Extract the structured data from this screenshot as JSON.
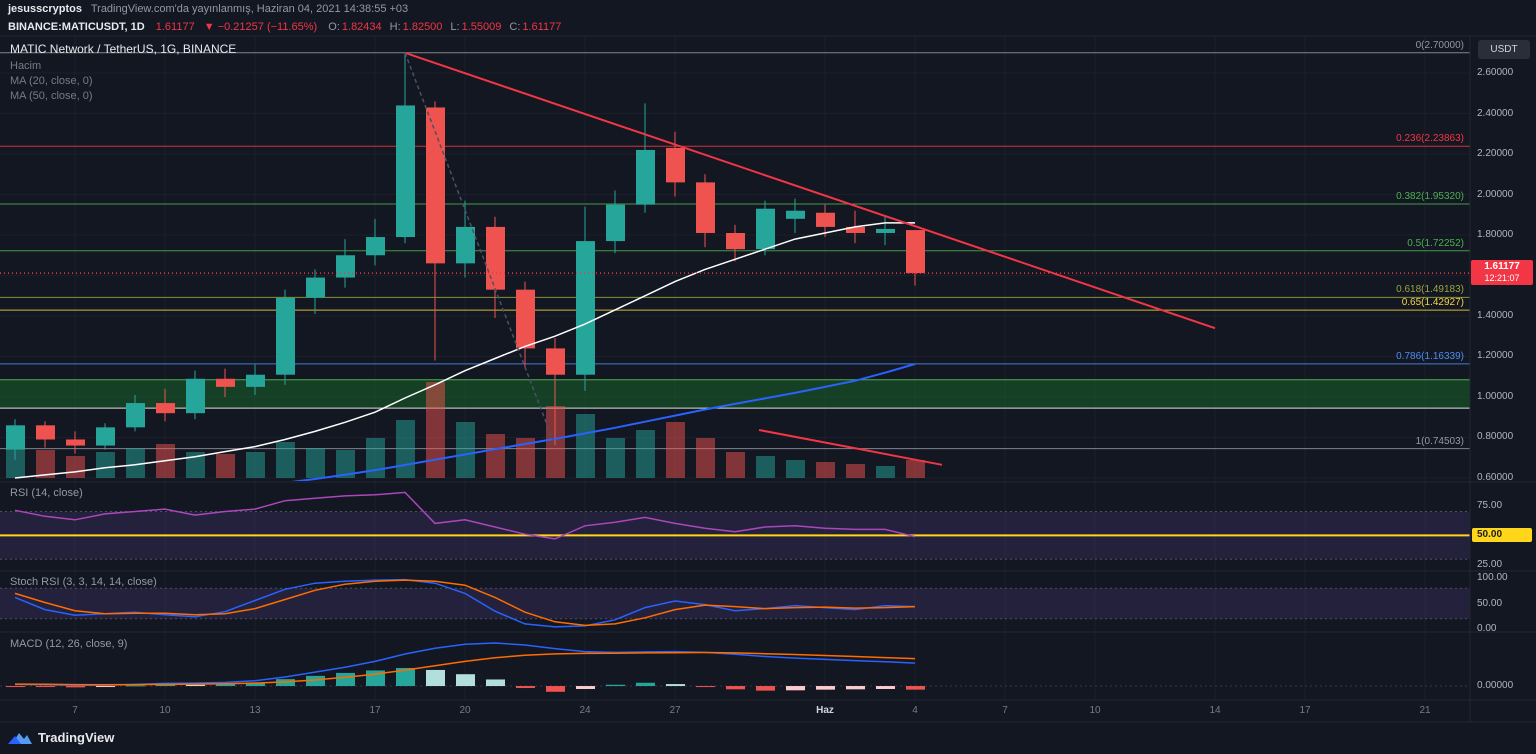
{
  "topbar": {
    "author": "jesusscryptos",
    "published": "TradingView.com'da yayınlanmış, Haziran 04, 2021 14:38:55 +03"
  },
  "symbol_bar": {
    "symbol": "BINANCE:MATICUSDT, 1D",
    "price": "1.61177",
    "change": "▼ −0.21257 (−11.65%)",
    "ohlc": [
      {
        "label": "O:",
        "value": "1.82434"
      },
      {
        "label": "H:",
        "value": "1.82500"
      },
      {
        "label": "L:",
        "value": "1.55009"
      },
      {
        "label": "C:",
        "value": "1.61177"
      }
    ]
  },
  "legend": {
    "title": "MATIC Network / TetherUS, 1G, BINANCE",
    "volume": "Hacim",
    "ma20": "MA (20, close, 0)",
    "ma50": "MA (50, close, 0)",
    "rsi": "RSI (14, close)",
    "stoch": "Stoch RSI (3, 3, 14, 14, close)",
    "macd": "MACD (12, 26, close, 9)"
  },
  "price_scale": {
    "currency": "USDT",
    "main_labels": [
      {
        "text": "2.60000",
        "value": 2.6
      },
      {
        "text": "2.40000",
        "value": 2.4
      },
      {
        "text": "2.20000",
        "value": 2.2
      },
      {
        "text": "2.00000",
        "value": 2.0
      },
      {
        "text": "1.80000",
        "value": 1.8
      },
      {
        "text": "1.60000",
        "value": 1.6
      },
      {
        "text": "1.40000",
        "value": 1.4
      },
      {
        "text": "1.20000",
        "value": 1.2
      },
      {
        "text": "1.00000",
        "value": 1.0
      },
      {
        "text": "0.80000",
        "value": 0.8
      },
      {
        "text": "0.60000",
        "value": 0.6
      }
    ],
    "price_badge": {
      "price": "1.61177",
      "countdown": "12:21:07",
      "color": "#f23645"
    }
  },
  "time_axis": {
    "labels": [
      {
        "label": "7",
        "i": 2
      },
      {
        "label": "10",
        "i": 5
      },
      {
        "label": "13",
        "i": 8
      },
      {
        "label": "17",
        "i": 12
      },
      {
        "label": "20",
        "i": 15
      },
      {
        "label": "24",
        "i": 19
      },
      {
        "label": "27",
        "i": 22
      },
      {
        "label": "Haz",
        "i": 27,
        "major": true
      },
      {
        "label": "4",
        "i": 30
      },
      {
        "label": "7",
        "i": 33
      },
      {
        "label": "10",
        "i": 36
      },
      {
        "label": "14",
        "i": 40
      },
      {
        "label": "17",
        "i": 43
      },
      {
        "label": "21",
        "i": 47
      }
    ]
  },
  "branding": {
    "name": "TradingView"
  },
  "chart_data": [
    {
      "type": "candlestick",
      "title": "MATIC Network / TetherUS, 1G, BINANCE",
      "interval": "1D",
      "up_color": "#26a69a",
      "down_color": "#ef5350",
      "ylim": [
        0.585,
        2.783
      ],
      "dates": [
        "2021-05-05",
        "2021-05-06",
        "2021-05-07",
        "2021-05-08",
        "2021-05-09",
        "2021-05-10",
        "2021-05-11",
        "2021-05-12",
        "2021-05-13",
        "2021-05-14",
        "2021-05-15",
        "2021-05-16",
        "2021-05-17",
        "2021-05-18",
        "2021-05-19",
        "2021-05-20",
        "2021-05-21",
        "2021-05-22",
        "2021-05-23",
        "2021-05-24",
        "2021-05-25",
        "2021-05-26",
        "2021-05-27",
        "2021-05-28",
        "2021-05-29",
        "2021-05-30",
        "2021-05-31",
        "2021-06-01",
        "2021-06-02",
        "2021-06-03",
        "2021-06-04"
      ],
      "open": [
        0.74,
        0.86,
        0.79,
        0.76,
        0.85,
        0.97,
        0.92,
        1.09,
        1.05,
        1.11,
        1.49,
        1.59,
        1.7,
        1.79,
        2.43,
        1.66,
        1.84,
        1.53,
        1.24,
        1.11,
        1.77,
        1.95,
        2.23,
        2.06,
        1.81,
        1.73,
        1.88,
        1.91,
        1.84,
        1.81,
        1.82434
      ],
      "high": [
        0.89,
        0.88,
        0.83,
        0.87,
        1.01,
        1.04,
        1.13,
        1.14,
        1.16,
        1.53,
        1.63,
        1.78,
        1.88,
        2.7,
        2.46,
        1.97,
        1.89,
        1.57,
        1.29,
        1.94,
        2.02,
        2.45,
        2.31,
        2.1,
        1.85,
        1.97,
        1.98,
        1.95,
        1.92,
        1.89,
        1.825
      ],
      "low": [
        0.69,
        0.75,
        0.72,
        0.74,
        0.83,
        0.88,
        0.89,
        1.0,
        1.01,
        1.06,
        1.41,
        1.54,
        1.65,
        1.76,
        1.18,
        1.59,
        1.39,
        1.14,
        0.76,
        1.03,
        1.71,
        1.91,
        1.99,
        1.74,
        1.67,
        1.7,
        1.81,
        1.79,
        1.76,
        1.75,
        1.55009
      ],
      "close": [
        0.86,
        0.79,
        0.76,
        0.85,
        0.97,
        0.92,
        1.09,
        1.05,
        1.11,
        1.49,
        1.59,
        1.7,
        1.79,
        2.44,
        1.66,
        1.84,
        1.53,
        1.24,
        1.11,
        1.77,
        1.95,
        2.22,
        2.06,
        1.81,
        1.73,
        1.93,
        1.92,
        1.84,
        1.81,
        1.83,
        1.61177
      ],
      "volume": [
        1.25,
        0.7,
        0.55,
        0.65,
        0.75,
        0.85,
        0.65,
        0.6,
        0.65,
        0.9,
        0.75,
        0.7,
        1.0,
        1.45,
        2.4,
        1.4,
        1.1,
        1.0,
        1.8,
        1.6,
        1.0,
        1.2,
        1.4,
        1.0,
        0.65,
        0.55,
        0.45,
        0.4,
        0.35,
        0.3,
        0.45
      ],
      "overlays": {
        "ma20": {
          "name": "MA (20, close, 0)",
          "color": "#ffffff",
          "values": [
            0.6,
            0.615,
            0.63,
            0.65,
            0.665,
            0.685,
            0.705,
            0.73,
            0.755,
            0.79,
            0.83,
            0.875,
            0.925,
            0.995,
            1.06,
            1.13,
            1.19,
            1.25,
            1.3,
            1.36,
            1.43,
            1.5,
            1.57,
            1.63,
            1.68,
            1.73,
            1.78,
            1.81,
            1.84,
            1.86,
            1.86
          ]
        },
        "ma50": {
          "name": "MA (50, close, 0)",
          "color": "#2962ff",
          "values": [
            0.455,
            0.465,
            0.475,
            0.487,
            0.5,
            0.513,
            0.527,
            0.542,
            0.558,
            0.576,
            0.595,
            0.616,
            0.639,
            0.664,
            0.69,
            0.716,
            0.742,
            0.768,
            0.793,
            0.82,
            0.848,
            0.878,
            0.908,
            0.938,
            0.966,
            0.993,
            1.02,
            1.05,
            1.08,
            1.12,
            1.163
          ]
        }
      },
      "fib_levels": [
        {
          "label": "0(2.70000)",
          "value": 2.7,
          "color": "#9598a1"
        },
        {
          "label": "0.236(2.23863)",
          "value": 2.23863,
          "color": "#f23645"
        },
        {
          "label": "0.382(1.95320)",
          "value": 1.9532,
          "color": "#4caf50"
        },
        {
          "label": "0.5(1.72252)",
          "value": 1.72252,
          "color": "#4caf50"
        },
        {
          "label": "0.618(1.49183)",
          "value": 1.49183,
          "color": "#9ba340"
        },
        {
          "label": "0.65(1.42927)",
          "value": 1.42927,
          "color": "#f2d43f"
        },
        {
          "label": "0.786(1.16339)",
          "value": 1.16339,
          "color": "#4c8df0"
        },
        {
          "label": "1(0.74503)",
          "value": 0.74503,
          "color": "#9598a1"
        }
      ],
      "support_zone": {
        "top": 1.085,
        "bottom": 0.945,
        "fill": "rgba(27,115,43,0.45)",
        "top_border": "#4caf50",
        "bottom_border": "#dededf"
      },
      "trendlines": [
        {
          "from": {
            "i": 13,
            "price": 2.7
          },
          "to": {
            "i": 40,
            "price": 1.34
          },
          "color": "#f23645",
          "width": 2,
          "dash": ""
        },
        {
          "from": {
            "i": 13,
            "price": 2.7
          },
          "to": {
            "i": 18,
            "price": 0.76
          },
          "color": "#4b5162",
          "width": 1.5,
          "dash": "4,3"
        }
      ],
      "volume_trendline": {
        "from": {
          "i": 24.8,
          "vol": 1.2
        },
        "to": {
          "i": 30.9,
          "vol": 0.33
        },
        "color": "#f23645",
        "width": 2
      },
      "price_line": {
        "value": 1.61177,
        "color": "#f23645"
      }
    },
    {
      "type": "line",
      "title": "RSI (14, close)",
      "color": "#ab47bc",
      "ylim": [
        21,
        93
      ],
      "values": [
        71,
        66,
        63,
        68,
        70,
        72,
        67,
        70,
        72,
        79,
        81,
        83,
        84,
        86,
        60,
        63,
        57,
        51,
        47,
        58,
        61,
        65,
        60,
        56,
        53,
        57,
        58,
        56,
        55,
        55,
        49
      ],
      "bands": {
        "upper": 70,
        "lower": 30,
        "fill": "rgba(126,87,194,0.16)"
      },
      "hline": {
        "value": 50,
        "color": "#ffd619",
        "label": "50.00"
      },
      "scale_labels": [
        {
          "text": "75.00",
          "value": 75
        },
        {
          "text": "50.00",
          "value": 50,
          "badge": true
        },
        {
          "text": "25.00",
          "value": 25
        }
      ]
    },
    {
      "type": "line",
      "title": "Stoch RSI (3, 3, 14, 14, close)",
      "ylim": [
        -4,
        112
      ],
      "series": [
        {
          "name": "%K",
          "color": "#2962ff",
          "values": [
            62,
            38,
            27,
            30,
            33,
            28,
            24,
            34,
            56,
            78,
            90,
            94,
            96,
            97,
            90,
            70,
            35,
            10,
            4,
            6,
            18,
            42,
            55,
            48,
            36,
            40,
            46,
            42,
            38,
            46,
            44
          ]
        },
        {
          "name": "%D",
          "color": "#ff6d00",
          "values": [
            70,
            52,
            36,
            30,
            31,
            31,
            28,
            30,
            40,
            58,
            76,
            88,
            94,
            96,
            94,
            86,
            62,
            33,
            14,
            7,
            10,
            22,
            38,
            47,
            44,
            40,
            42,
            43,
            41,
            42,
            44
          ]
        }
      ],
      "bands": {
        "upper": 80,
        "lower": 20,
        "fill": "rgba(126,87,194,0.16)"
      },
      "scale_labels": [
        {
          "text": "100.00",
          "value": 100
        },
        {
          "text": "50.00",
          "value": 50
        },
        {
          "text": "0.00",
          "value": 0
        }
      ]
    },
    {
      "type": "macd",
      "title": "MACD (12, 26, close, 9)",
      "ylim": [
        -0.085,
        0.323
      ],
      "macd": {
        "color": "#2962ff",
        "values": [
          0.01,
          0.008,
          0.005,
          0.006,
          0.01,
          0.016,
          0.018,
          0.022,
          0.032,
          0.055,
          0.085,
          0.115,
          0.15,
          0.195,
          0.23,
          0.255,
          0.262,
          0.25,
          0.228,
          0.21,
          0.205,
          0.208,
          0.21,
          0.205,
          0.193,
          0.18,
          0.17,
          0.162,
          0.155,
          0.148,
          0.14
        ]
      },
      "signal": {
        "color": "#ff6d00",
        "values": [
          0.012,
          0.011,
          0.009,
          0.008,
          0.009,
          0.01,
          0.012,
          0.014,
          0.018,
          0.025,
          0.037,
          0.053,
          0.072,
          0.097,
          0.124,
          0.15,
          0.172,
          0.188,
          0.196,
          0.199,
          0.2,
          0.202,
          0.203,
          0.204,
          0.202,
          0.197,
          0.192,
          0.186,
          0.18,
          0.173,
          0.167
        ]
      },
      "histogram": {
        "values": [
          -0.004,
          -0.006,
          -0.008,
          -0.004,
          0.004,
          0.01,
          0.008,
          0.012,
          0.022,
          0.042,
          0.062,
          0.08,
          0.095,
          0.11,
          0.098,
          0.072,
          0.04,
          -0.012,
          -0.035,
          -0.018,
          0.008,
          0.02,
          0.012,
          -0.006,
          -0.02,
          -0.028,
          -0.026,
          -0.022,
          -0.02,
          -0.018,
          -0.022
        ],
        "colors": {
          "up_grow": "#26a69a",
          "up_fall": "#b2dfdb",
          "down_grow": "#ef5350",
          "down_fall": "#fccbcd"
        }
      },
      "scale_labels": [
        {
          "text": "0.00000",
          "value": 0
        }
      ]
    }
  ]
}
